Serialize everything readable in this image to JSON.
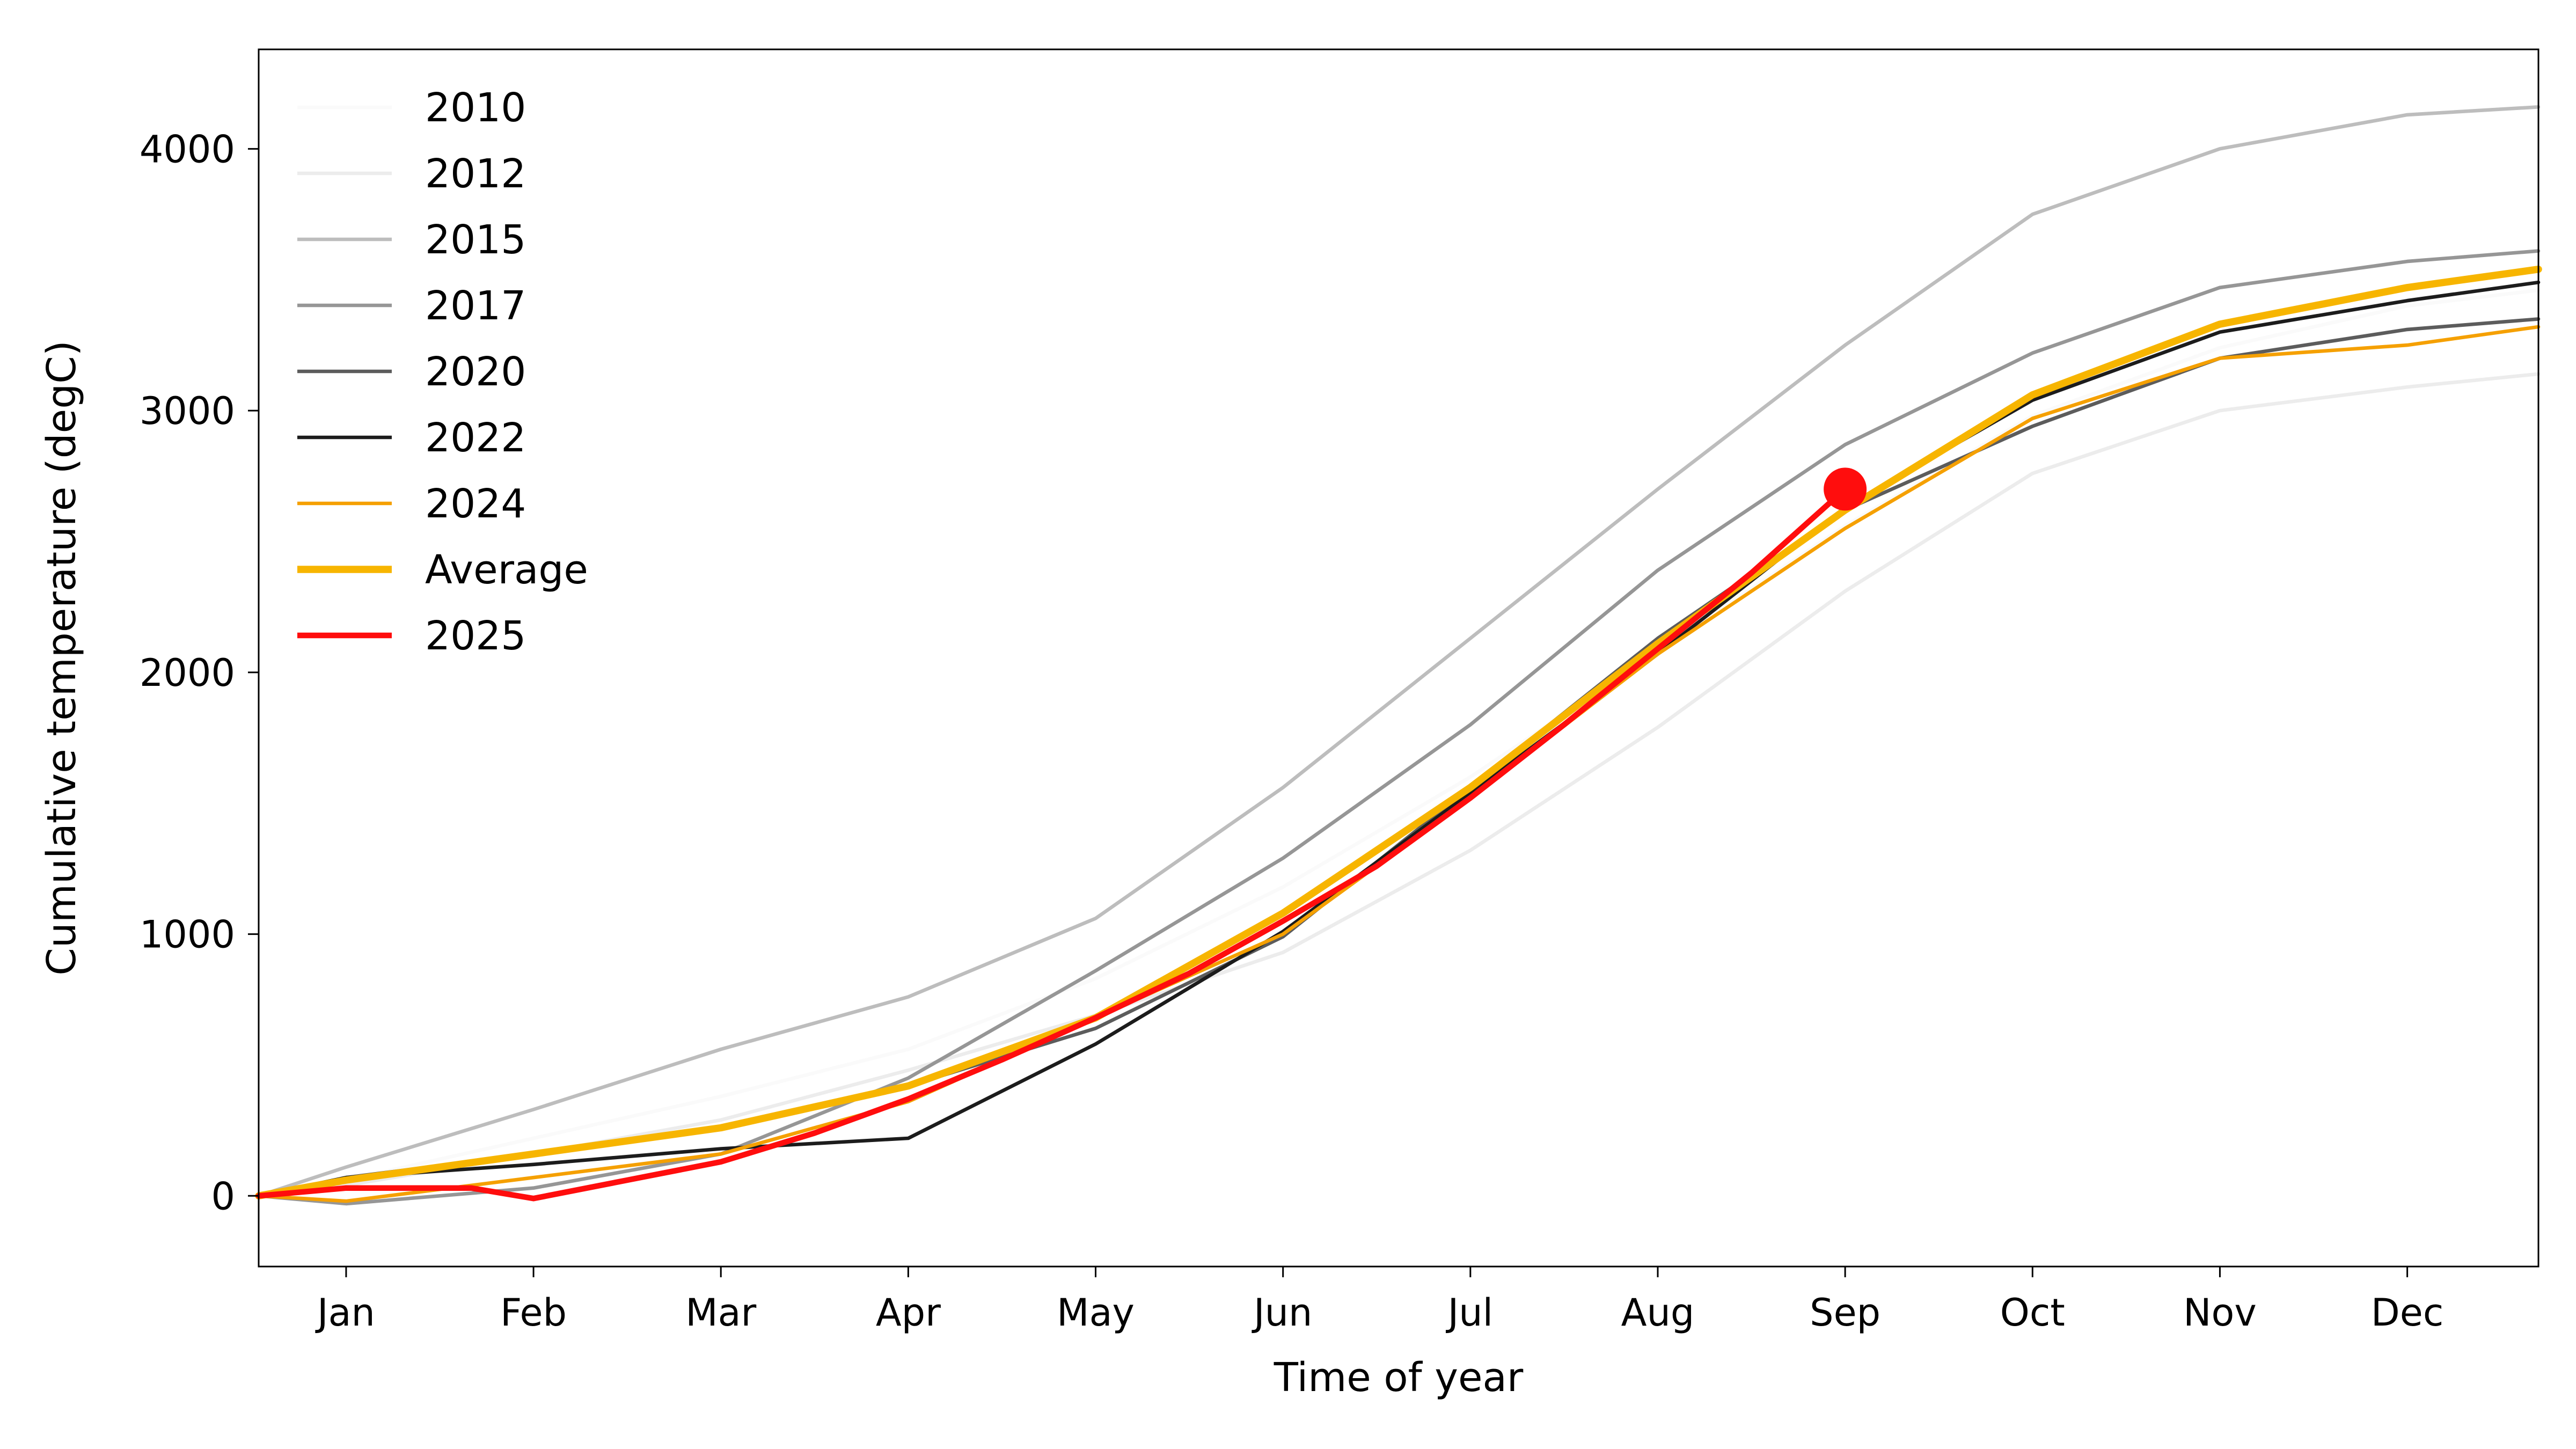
{
  "chart_data": {
    "type": "line",
    "xlabel": "Time of year",
    "ylabel": "Cumulative temperature (degC)",
    "xlim": [
      -14,
      351
    ],
    "ylim": [
      -270,
      4380
    ],
    "x_ticks": [
      {
        "label": "Jan",
        "x": 0
      },
      {
        "label": "Feb",
        "x": 30
      },
      {
        "label": "Mar",
        "x": 60
      },
      {
        "label": "Apr",
        "x": 90
      },
      {
        "label": "May",
        "x": 120
      },
      {
        "label": "Jun",
        "x": 150
      },
      {
        "label": "Jul",
        "x": 180
      },
      {
        "label": "Aug",
        "x": 210
      },
      {
        "label": "Sep",
        "x": 240
      },
      {
        "label": "Oct",
        "x": 270
      },
      {
        "label": "Nov",
        "x": 300
      },
      {
        "label": "Dec",
        "x": 330
      }
    ],
    "y_ticks": [
      0,
      1000,
      2000,
      3000,
      4000
    ],
    "grid": false,
    "legend_position": "upper-left",
    "x": [
      -14,
      0,
      30,
      60,
      90,
      120,
      150,
      180,
      210,
      240,
      270,
      300,
      330,
      351
    ],
    "series": [
      {
        "name": "2010",
        "color": "#fafafa",
        "width": 2.2,
        "values": [
          0,
          60,
          220,
          380,
          560,
          830,
          1180,
          1600,
          2080,
          2560,
          2980,
          3240,
          3400,
          3460
        ]
      },
      {
        "name": "2012",
        "color": "#ececec",
        "width": 2.2,
        "values": [
          0,
          40,
          160,
          290,
          480,
          690,
          930,
          1320,
          1790,
          2310,
          2760,
          3000,
          3090,
          3140
        ]
      },
      {
        "name": "2015",
        "color": "#bdbdbd",
        "width": 2.2,
        "values": [
          0,
          110,
          330,
          560,
          760,
          1060,
          1560,
          2130,
          2700,
          3250,
          3750,
          4000,
          4130,
          4160
        ]
      },
      {
        "name": "2017",
        "color": "#969696",
        "width": 2.2,
        "values": [
          0,
          -30,
          30,
          160,
          450,
          860,
          1290,
          1800,
          2390,
          2870,
          3220,
          3470,
          3570,
          3610
        ]
      },
      {
        "name": "2020",
        "color": "#5c5c5c",
        "width": 2.2,
        "values": [
          0,
          70,
          160,
          260,
          420,
          640,
          990,
          1560,
          2130,
          2620,
          2940,
          3200,
          3310,
          3350
        ]
      },
      {
        "name": "2022",
        "color": "#1c1c1c",
        "width": 2.2,
        "values": [
          0,
          70,
          120,
          180,
          220,
          580,
          1010,
          1540,
          2070,
          2630,
          3040,
          3300,
          3420,
          3490
        ]
      },
      {
        "name": "2024",
        "color": "#f5a000",
        "width": 2.2,
        "values": [
          0,
          -20,
          70,
          160,
          360,
          680,
          1000,
          1520,
          2070,
          2550,
          2970,
          3200,
          3250,
          3320
        ]
      },
      {
        "name": "Average",
        "color": "#f7b500",
        "width": 4.5,
        "values": [
          0,
          60,
          160,
          260,
          420,
          680,
          1080,
          1560,
          2110,
          2620,
          3060,
          3330,
          3470,
          3540
        ]
      }
    ],
    "highlight": {
      "name": "2025",
      "color": "#ff0d0d",
      "width": 3.5,
      "x": [
        -14,
        0,
        20,
        30,
        45,
        60,
        75,
        90,
        105,
        120,
        135,
        150,
        165,
        180,
        195,
        210,
        225,
        240
      ],
      "values": [
        0,
        30,
        30,
        -10,
        60,
        130,
        240,
        370,
        520,
        680,
        850,
        1050,
        1260,
        1520,
        1800,
        2090,
        2380,
        2700
      ]
    },
    "marker": {
      "x": 240,
      "y": 2700,
      "color": "#ff0d0d"
    }
  }
}
